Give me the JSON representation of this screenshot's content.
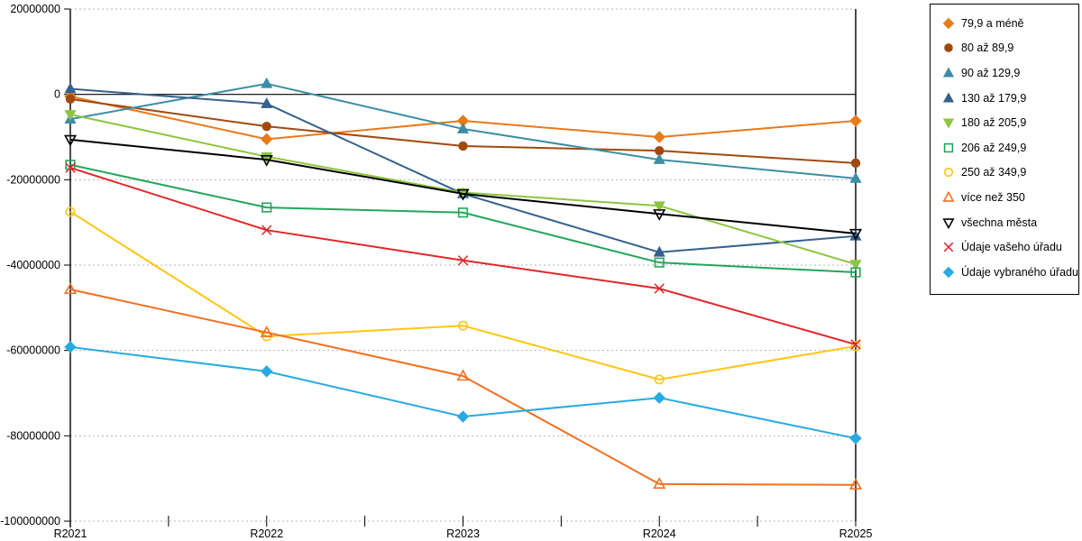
{
  "chart_data": {
    "type": "line",
    "title": "",
    "xlabel": "",
    "ylabel": "",
    "grid": "horizontal-dotted",
    "legend_position": "outside-top-right",
    "categories": [
      "R2021",
      "R2022",
      "R2023",
      "R2024",
      "R2025"
    ],
    "y_axis": {
      "min": -100000000,
      "max": 20000000,
      "tick_interval": 20000000,
      "ticks": [
        {
          "value": 20000000,
          "label": "20000000"
        },
        {
          "value": 0,
          "label": "0"
        },
        {
          "value": -20000000,
          "label": "-20000000"
        },
        {
          "value": -40000000,
          "label": "-40000000"
        },
        {
          "value": -60000000,
          "label": "-60000000"
        },
        {
          "value": -80000000,
          "label": "-80000000"
        },
        {
          "value": -100000000,
          "label": "-100000000"
        }
      ]
    },
    "series": [
      {
        "name": "79,9 a méně",
        "color": "#E87A1A",
        "marker": "diamond",
        "filled": true,
        "values": [
          -500000,
          -10500000,
          -6200000,
          -10000000,
          -6200000
        ]
      },
      {
        "name": "80 až 89,9",
        "color": "#A04A10",
        "marker": "circle",
        "filled": true,
        "values": [
          -1100000,
          -7500000,
          -12100000,
          -13200000,
          -16100000
        ]
      },
      {
        "name": "90 až 129,9",
        "color": "#3C8DA5",
        "marker": "triangle-up",
        "filled": true,
        "values": [
          -5800000,
          2500000,
          -8100000,
          -15300000,
          -19700000
        ]
      },
      {
        "name": "130 až 179,9",
        "color": "#34618D",
        "marker": "triangle-up",
        "filled": true,
        "values": [
          1300000,
          -2200000,
          -23300000,
          -37000000,
          -33200000
        ]
      },
      {
        "name": "180 až 205,9",
        "color": "#8CC540",
        "marker": "triangle-down",
        "filled": true,
        "values": [
          -4700000,
          -14600000,
          -23000000,
          -26100000,
          -39800000
        ]
      },
      {
        "name": "206 až 249,9",
        "color": "#22A65B",
        "marker": "square",
        "filled": false,
        "values": [
          -16500000,
          -26500000,
          -27700000,
          -39400000,
          -41700000
        ]
      },
      {
        "name": "250 až 349,9",
        "color": "#FFC610",
        "marker": "circle",
        "filled": false,
        "values": [
          -27500000,
          -56700000,
          -54200000,
          -66800000,
          -59000000
        ]
      },
      {
        "name": "více než 350",
        "color": "#F37021",
        "marker": "triangle-up",
        "filled": false,
        "values": [
          -45700000,
          -55800000,
          -66000000,
          -91300000,
          -91500000
        ]
      },
      {
        "name": "všechna města",
        "color": "#000000",
        "marker": "triangle-down",
        "filled": false,
        "values": [
          -10600000,
          -15300000,
          -23300000,
          -28000000,
          -32600000
        ]
      },
      {
        "name": "Údaje vašeho úřadu",
        "color": "#E12727",
        "marker": "x",
        "filled": false,
        "values": [
          -17200000,
          -31800000,
          -38900000,
          -45500000,
          -58600000
        ]
      },
      {
        "name": "Údaje vybraného úřadu",
        "color": "#27AAE1",
        "marker": "diamond",
        "filled": true,
        "values": [
          -59200000,
          -64900000,
          -75500000,
          -71100000,
          -80600000
        ]
      }
    ]
  },
  "colors": {
    "gridline": "#B3B3B3",
    "axis": "#000000",
    "background": "#FFFFFF"
  }
}
